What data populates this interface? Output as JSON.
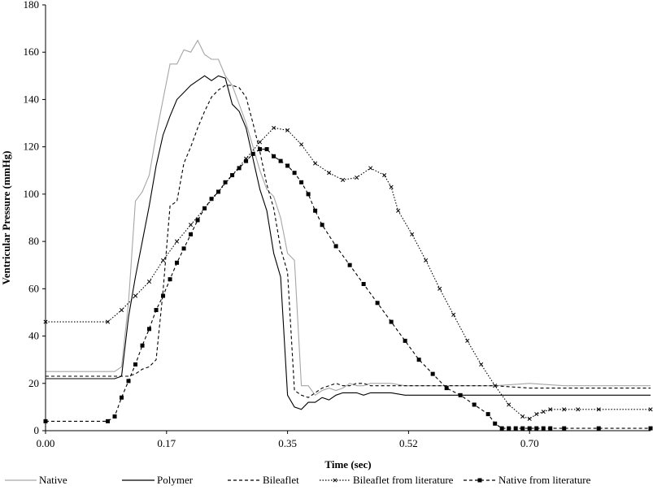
{
  "chart_data": {
    "type": "line",
    "title": "",
    "xlabel": "Time (sec)",
    "ylabel": "Ventricular Pressure (mmHg)",
    "xlim": [
      0,
      0.875
    ],
    "ylim": [
      0,
      180
    ],
    "xticks": [
      0.0,
      0.175,
      0.35,
      0.525,
      0.7
    ],
    "xtick_labels": [
      "0.00",
      "0.17",
      "0.35",
      "0.52",
      "0.70"
    ],
    "yticks": [
      0,
      20,
      40,
      60,
      80,
      100,
      120,
      140,
      160,
      180
    ],
    "ytick_labels": [
      "0",
      "20",
      "40",
      "60",
      "80",
      "100",
      "120",
      "140",
      "160",
      "180"
    ],
    "grid": false,
    "legend_position": "bottom",
    "series": [
      {
        "name": "Native",
        "style": "solid",
        "color": "#a6a6a6",
        "marker": "none",
        "x": [
          0.0,
          0.1,
          0.11,
          0.12,
          0.13,
          0.14,
          0.15,
          0.16,
          0.17,
          0.18,
          0.19,
          0.2,
          0.21,
          0.22,
          0.23,
          0.24,
          0.25,
          0.26,
          0.27,
          0.28,
          0.29,
          0.3,
          0.31,
          0.32,
          0.33,
          0.34,
          0.35,
          0.36,
          0.37,
          0.38,
          0.39,
          0.4,
          0.41,
          0.42,
          0.43,
          0.44,
          0.45,
          0.46,
          0.47,
          0.48,
          0.49,
          0.5,
          0.52,
          0.55,
          0.58,
          0.6,
          0.65,
          0.7,
          0.75,
          0.8,
          0.875
        ],
        "y": [
          25,
          25,
          27,
          54,
          97,
          101,
          108,
          125,
          140,
          155,
          155,
          161,
          160,
          165,
          159,
          157,
          157,
          150,
          146,
          138,
          130,
          120,
          110,
          102,
          99,
          90,
          75,
          72,
          19,
          19,
          15,
          17,
          18,
          17,
          18,
          20,
          19,
          19,
          20,
          20,
          20,
          20,
          19,
          19,
          19,
          19,
          19,
          20,
          19,
          19,
          19
        ]
      },
      {
        "name": "Polymer",
        "style": "solid",
        "color": "#000000",
        "marker": "none",
        "x": [
          0.0,
          0.1,
          0.11,
          0.12,
          0.13,
          0.14,
          0.15,
          0.16,
          0.17,
          0.18,
          0.19,
          0.2,
          0.21,
          0.22,
          0.23,
          0.24,
          0.25,
          0.26,
          0.27,
          0.28,
          0.29,
          0.3,
          0.31,
          0.32,
          0.33,
          0.34,
          0.35,
          0.36,
          0.37,
          0.38,
          0.39,
          0.4,
          0.41,
          0.42,
          0.43,
          0.44,
          0.45,
          0.46,
          0.47,
          0.48,
          0.5,
          0.52,
          0.55,
          0.58,
          0.6,
          0.65,
          0.7,
          0.75,
          0.8,
          0.875
        ],
        "y": [
          22,
          22,
          23,
          48,
          65,
          80,
          95,
          112,
          125,
          133,
          140,
          143,
          146,
          148,
          150,
          148,
          150,
          149,
          138,
          135,
          128,
          115,
          102,
          93,
          75,
          65,
          15,
          10,
          9,
          12,
          12,
          14,
          13,
          15,
          16,
          16,
          16,
          15,
          16,
          16,
          16,
          15,
          15,
          15,
          15,
          15,
          15,
          15,
          15,
          15
        ]
      },
      {
        "name": "Bileaflet",
        "style": "dashed",
        "color": "#000000",
        "marker": "none",
        "x": [
          0.0,
          0.12,
          0.13,
          0.14,
          0.15,
          0.16,
          0.17,
          0.18,
          0.19,
          0.2,
          0.21,
          0.22,
          0.23,
          0.24,
          0.25,
          0.26,
          0.27,
          0.28,
          0.29,
          0.3,
          0.31,
          0.32,
          0.33,
          0.34,
          0.35,
          0.36,
          0.37,
          0.38,
          0.39,
          0.4,
          0.41,
          0.42,
          0.43,
          0.44,
          0.45,
          0.46,
          0.47,
          0.48,
          0.5,
          0.52,
          0.55,
          0.6,
          0.65,
          0.7,
          0.75,
          0.8,
          0.875
        ],
        "y": [
          23,
          23,
          24,
          26,
          27,
          30,
          59,
          95,
          97,
          113,
          120,
          128,
          135,
          141,
          144,
          146,
          146,
          145,
          141,
          130,
          118,
          104,
          94,
          77,
          67,
          17,
          15,
          14,
          16,
          18,
          19,
          20,
          19,
          19,
          20,
          20,
          19,
          19,
          19,
          19,
          19,
          19,
          19,
          18,
          18,
          18,
          18
        ]
      },
      {
        "name": "Bileaflet from literature",
        "style": "dotted",
        "color": "#000000",
        "marker": "x",
        "x": [
          0.0,
          0.09,
          0.11,
          0.13,
          0.15,
          0.17,
          0.19,
          0.21,
          0.23,
          0.25,
          0.27,
          0.29,
          0.31,
          0.33,
          0.35,
          0.37,
          0.39,
          0.41,
          0.43,
          0.45,
          0.47,
          0.49,
          0.5,
          0.51,
          0.53,
          0.55,
          0.57,
          0.59,
          0.61,
          0.63,
          0.65,
          0.67,
          0.69,
          0.7,
          0.71,
          0.72,
          0.73,
          0.75,
          0.77,
          0.8,
          0.875
        ],
        "y": [
          46,
          46,
          51,
          57,
          63,
          72,
          80,
          87,
          94,
          101,
          108,
          115,
          122,
          128,
          127,
          121,
          113,
          109,
          106,
          107,
          111,
          108,
          103,
          93,
          83,
          72,
          60,
          49,
          38,
          28,
          19,
          11,
          6,
          5,
          7,
          8,
          9,
          9,
          9,
          9,
          9
        ]
      },
      {
        "name": "Native from literature",
        "style": "dashed",
        "color": "#000000",
        "marker": "square",
        "x": [
          0.0,
          0.09,
          0.1,
          0.11,
          0.12,
          0.13,
          0.14,
          0.15,
          0.16,
          0.17,
          0.18,
          0.19,
          0.2,
          0.21,
          0.22,
          0.23,
          0.24,
          0.25,
          0.26,
          0.27,
          0.28,
          0.29,
          0.3,
          0.31,
          0.32,
          0.33,
          0.34,
          0.35,
          0.36,
          0.37,
          0.38,
          0.39,
          0.4,
          0.42,
          0.44,
          0.46,
          0.48,
          0.5,
          0.52,
          0.54,
          0.56,
          0.58,
          0.6,
          0.62,
          0.64,
          0.65,
          0.66,
          0.67,
          0.68,
          0.69,
          0.7,
          0.71,
          0.72,
          0.73,
          0.75,
          0.8,
          0.875
        ],
        "y": [
          4,
          4,
          6,
          14,
          21,
          28,
          36,
          43,
          51,
          57,
          64,
          71,
          77,
          83,
          89,
          94,
          98,
          101,
          105,
          108,
          111,
          114,
          117,
          119,
          119,
          116,
          114,
          112,
          109,
          105,
          100,
          93,
          87,
          78,
          70,
          62,
          54,
          46,
          38,
          30,
          24,
          18,
          15,
          11,
          7,
          3,
          1,
          1,
          1,
          1,
          1,
          1,
          1,
          1,
          1,
          1,
          1
        ]
      }
    ]
  }
}
